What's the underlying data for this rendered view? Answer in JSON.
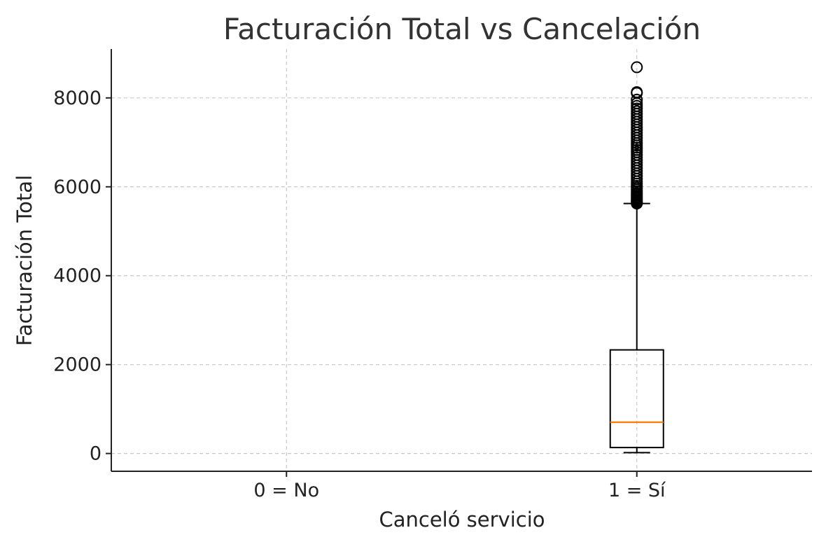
{
  "chart_data": {
    "type": "boxplot",
    "title": "Facturación Total vs Cancelación",
    "xlabel": "Canceló servicio",
    "ylabel": "Facturación Total",
    "categories": [
      "0 = No",
      "1 = Sí"
    ],
    "ylim": [
      -400,
      9100
    ],
    "yticks": [
      0,
      2000,
      4000,
      6000,
      8000
    ],
    "ytick_labels": [
      "0",
      "2000",
      "4000",
      "6000",
      "8000"
    ],
    "grid": true,
    "boxes": [
      {
        "category": "1 = Sí",
        "whisker_low": 19,
        "q1": 134,
        "median": 704,
        "q3": 2331,
        "whisker_high": 5624,
        "outliers": [
          5624,
          5638,
          5660,
          5680,
          5710,
          5740,
          5770,
          5800,
          5830,
          5860,
          5900,
          5940,
          5980,
          6020,
          6070,
          6120,
          6180,
          6240,
          6300,
          6360,
          6420,
          6480,
          6540,
          6600,
          6660,
          6720,
          6780,
          6830,
          6880,
          6930,
          6980,
          7040,
          7100,
          7160,
          7220,
          7280,
          7340,
          7400,
          7460,
          7520,
          7580,
          7640,
          7700,
          7760,
          7820,
          7880,
          7960,
          8110,
          8130,
          8690
        ]
      }
    ],
    "colors": {
      "median": "#ff7f0e",
      "box": "#000000",
      "grid": "#c8c8c8",
      "text": "#222222",
      "title": "#333333"
    }
  }
}
